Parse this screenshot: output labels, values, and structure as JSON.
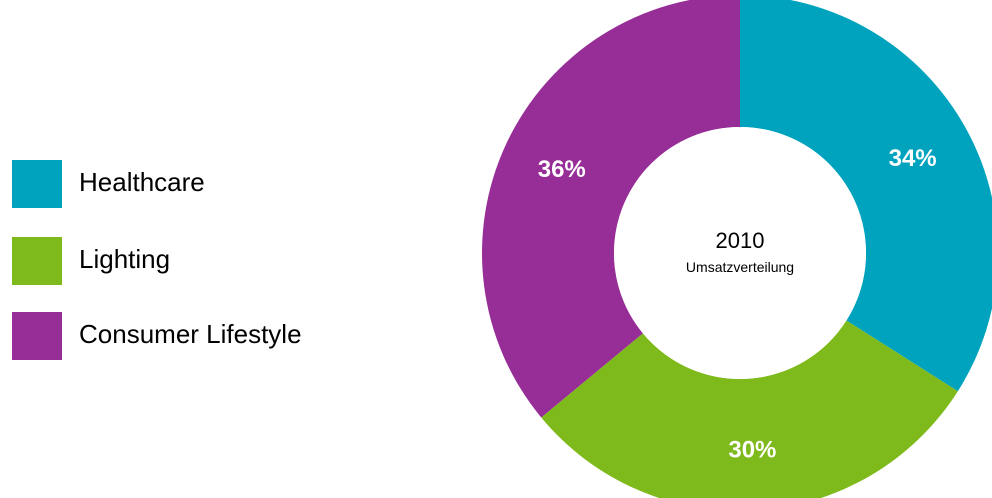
{
  "chart_data": {
    "type": "pie",
    "variant": "donut",
    "center_text": "2010",
    "center_subtext": "Umsatzverteilung",
    "categories": [
      "Healthcare",
      "Lighting",
      "Consumer Lifestyle"
    ],
    "values": [
      34,
      30,
      36
    ],
    "value_labels": [
      "34%",
      "30%",
      "36%"
    ],
    "colors": [
      "#00A3BE",
      "#7FBA1C",
      "#972D97"
    ],
    "legend_position": "left"
  }
}
